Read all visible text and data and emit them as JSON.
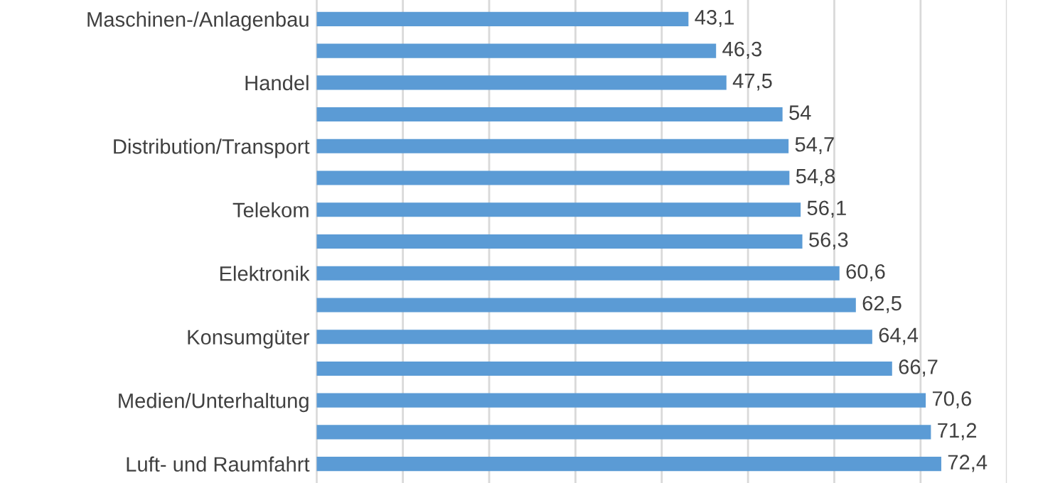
{
  "chart_data": {
    "type": "bar",
    "orientation": "horizontal",
    "categories": [
      "Maschinen-/Anlagenbau",
      null,
      "Handel",
      null,
      "Distribution/Transport",
      null,
      "Telekom",
      null,
      "Elektronik",
      null,
      "Konsumgüter",
      null,
      "Medien/Unterhaltung",
      null,
      "Luft- und Raumfahrt"
    ],
    "values": [
      43.1,
      46.3,
      47.5,
      54,
      54.7,
      54.8,
      56.1,
      56.3,
      60.6,
      62.5,
      64.4,
      66.7,
      70.6,
      71.2,
      72.4
    ],
    "value_labels": [
      "43,1",
      "46,3",
      "47,5",
      "54",
      "54,7",
      "54,8",
      "56,1",
      "56,3",
      "60,6",
      "62,5",
      "64,4",
      "66,7",
      "70,6",
      "71,2",
      "72,4"
    ],
    "color": "#5b9bd5",
    "xlim": [
      0,
      80
    ],
    "xticks": [
      {
        "value": 0,
        "label": null
      },
      {
        "value": 10,
        "label": null
      },
      {
        "value": 20,
        "label": null
      },
      {
        "value": 30,
        "label": null
      },
      {
        "value": 40,
        "label": null
      },
      {
        "value": 50,
        "label": null
      },
      {
        "value": 60,
        "label": null
      },
      {
        "value": 70,
        "label": null
      },
      {
        "value": 80,
        "label": null
      }
    ],
    "grid": "x",
    "tick_labels": "y"
  }
}
